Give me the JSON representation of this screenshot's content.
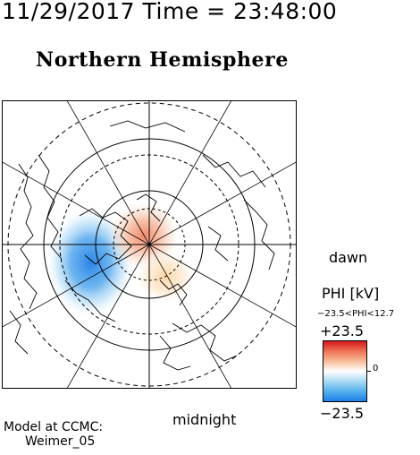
{
  "header": {
    "timestamp": "11/29/2017 Time = 23:48:00",
    "title": "Northern Hemisphere"
  },
  "map": {
    "dawn_label": "dawn",
    "midnight_label": "midnight",
    "icons": [
      "polar-grid-icon",
      "coastline-icon"
    ]
  },
  "legend": {
    "title": "PHI [kV]",
    "range_text": "−23.5<PHI<12.7",
    "max_label": "+23.5",
    "zero_label": "0",
    "min_label": "−23.5",
    "colors": {
      "positive": "#d7191c",
      "neutral": "#ffffff",
      "negative": "#1f7fe6"
    }
  },
  "footer": {
    "model_label": "Model at CCMC:",
    "model_name": "Weimer_05"
  }
}
